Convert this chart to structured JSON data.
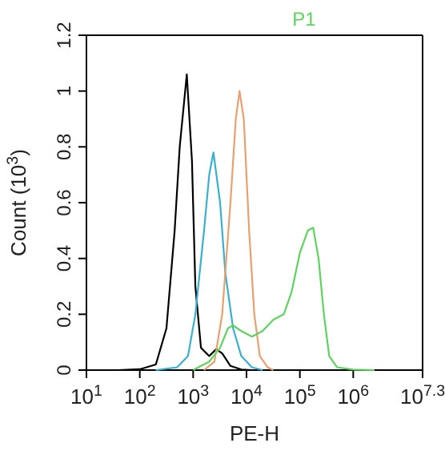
{
  "chart_data": {
    "type": "line",
    "xlabel": "PE-H",
    "ylabel": "Count (10$^{3}$)",
    "log": "x",
    "annotations": [
      "P1"
    ],
    "xlim": [
      10,
      19952623
    ],
    "xticks": [
      {
        "value": 10,
        "label": "10$^{1}$"
      },
      {
        "value": 100,
        "label": "10$^{2}$"
      },
      {
        "value": 1000,
        "label": "10$^{3}$"
      },
      {
        "value": 10000,
        "label": "10$^{4}$"
      },
      {
        "value": 100000,
        "label": "10$^{5}$"
      },
      {
        "value": 1000000,
        "label": "10$^{6}$"
      },
      {
        "value": 19952623,
        "label": "10$^{7.3}$"
      }
    ],
    "ylim": [
      0,
      1.2
    ],
    "yticks": [
      0,
      0.2,
      0.4,
      0.6,
      0.8,
      1,
      1.2
    ],
    "grid": false,
    "marker": "none",
    "line_style": "solid",
    "series": [
      {
        "color": "#000000",
        "x": [
          40,
          100,
          200,
          316,
          450,
          560,
          760,
          950,
          1100,
          1400,
          2000,
          2700,
          3500,
          5000,
          8000,
          12600
        ],
        "values": [
          0,
          0.003,
          0.02,
          0.15,
          0.5,
          0.8,
          1.06,
          0.75,
          0.3,
          0.08,
          0.05,
          0.075,
          0.06,
          0.015,
          0.002,
          0
        ]
      },
      {
        "color": "#3ab0d0",
        "x": [
          200,
          500,
          800,
          1100,
          1600,
          2000,
          2400,
          3200,
          4000,
          5600,
          8000,
          12600,
          20000
        ],
        "values": [
          0,
          0.01,
          0.05,
          0.2,
          0.5,
          0.7,
          0.78,
          0.6,
          0.35,
          0.15,
          0.05,
          0.01,
          0
        ]
      },
      {
        "color": "#e8a070",
        "x": [
          1600,
          2500,
          3500,
          5000,
          6300,
          7400,
          8900,
          11200,
          14000,
          17800,
          25000,
          31600
        ],
        "values": [
          0,
          0.03,
          0.2,
          0.6,
          0.9,
          1.0,
          0.9,
          0.5,
          0.2,
          0.05,
          0.01,
          0
        ]
      },
      {
        "color": "#5fd35f",
        "x": [
          1000,
          2000,
          3200,
          4500,
          5600,
          8000,
          12600,
          20000,
          31600,
          50000,
          70000,
          100000,
          141000,
          178000,
          224000,
          282000,
          355000,
          500000,
          1000000,
          2500000
        ],
        "values": [
          0,
          0.03,
          0.08,
          0.15,
          0.16,
          0.14,
          0.12,
          0.14,
          0.18,
          0.2,
          0.28,
          0.42,
          0.5,
          0.51,
          0.4,
          0.2,
          0.05,
          0.01,
          0.002,
          0
        ]
      }
    ]
  }
}
